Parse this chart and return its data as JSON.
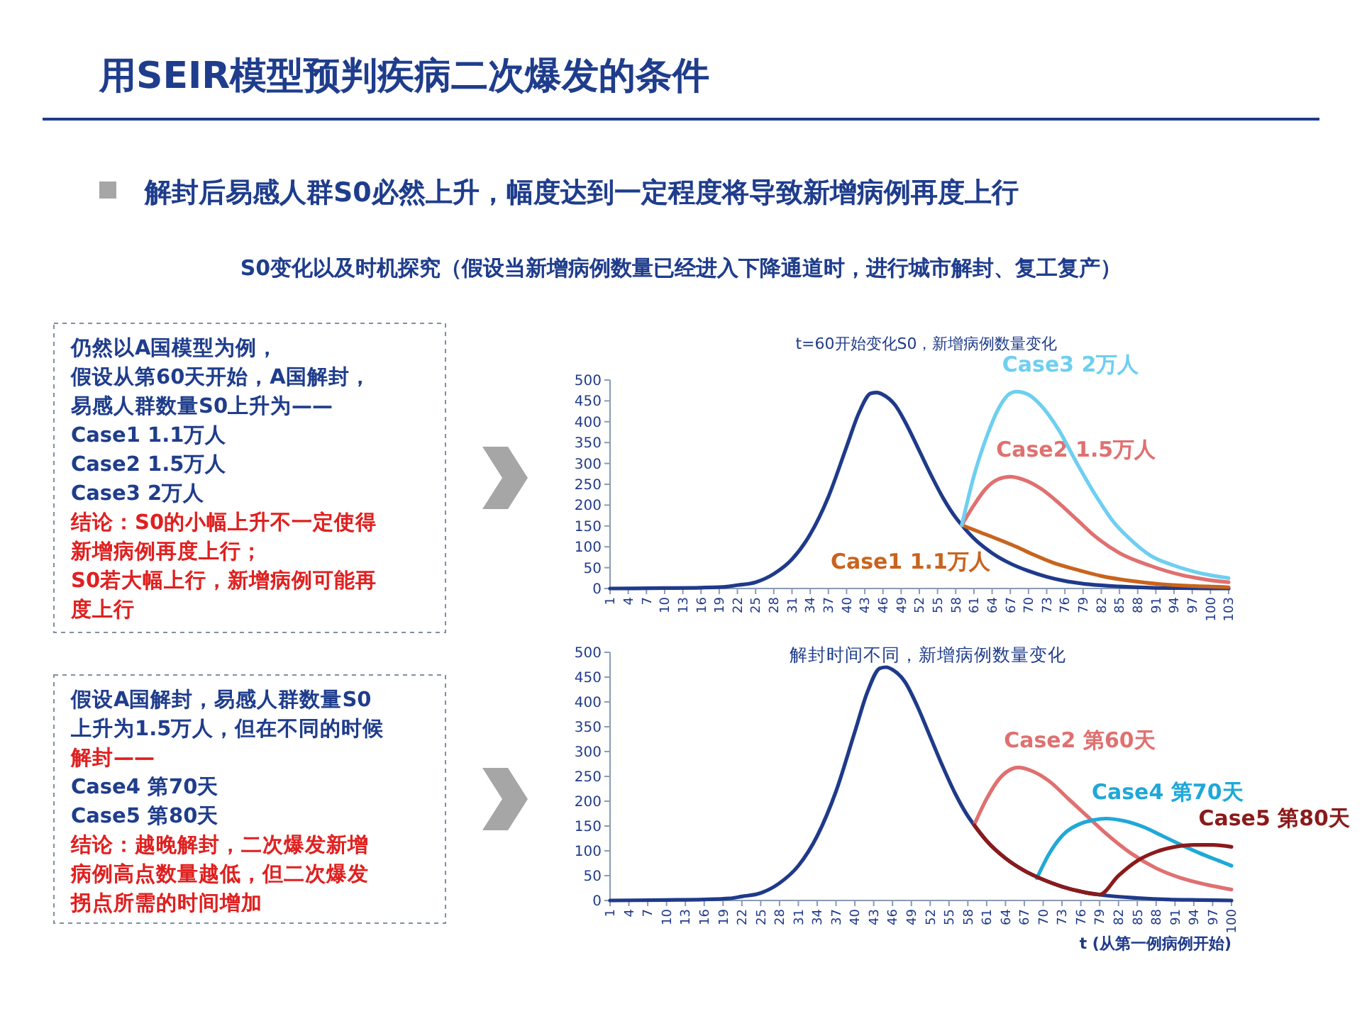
{
  "chart_data": [
    {
      "type": "other",
      "title": "用SEIR模型预判疾病二次爆发的条件",
      "subtitle": "解封后易感人群S0必然上升，幅度达到一定程度将导致新增病例再度上行",
      "annotations": [
        "S0变化以及时机探究（假设当新增病例数量已经进入下降通道时，进行城市解封、复工复产）"
      ]
    },
    {
      "type": "other",
      "annotations": [
        "仍然以A国模型为例，",
        "假设从第60天开始，A国解封，",
        "易感人群数量S0上升为——",
        "Case1  1.1万人",
        "Case2  1.5万人",
        "Case3  2万人",
        "结论：S0的小幅上升不一定使得",
        "新增病例再度上行；",
        "S0若大幅上行，新增病例可能再",
        "度上行"
      ],
      "colors": [
        "#1f3d8c",
        "#1f3d8c",
        "#1f3d8c",
        "#1f3d8c",
        "#1f3d8c",
        "#1f3d8c",
        "#e02020",
        "#e02020",
        "#e02020",
        "#e02020"
      ]
    },
    {
      "type": "line",
      "title": "t=60开始变化S0，新增病例数量变化",
      "xlim": [
        1,
        103
      ],
      "xticks": [
        1,
        4,
        7,
        10,
        13,
        16,
        19,
        22,
        25,
        28,
        31,
        34,
        37,
        40,
        43,
        46,
        49,
        52,
        55,
        58,
        61,
        64,
        67,
        70,
        73,
        76,
        79,
        82,
        85,
        88,
        91,
        94,
        97,
        100,
        103
      ],
      "ylim": [
        0,
        500
      ],
      "yticks": [
        0,
        50,
        100,
        150,
        200,
        250,
        300,
        350,
        400,
        450,
        500
      ],
      "grid": false,
      "legend": false,
      "marker": "none",
      "line_style": "solid",
      "series": [
        {
          "color": "#1f3a8a",
          "x": [
            1,
            10,
            16,
            20,
            22,
            25,
            28,
            31,
            34,
            37,
            40,
            42,
            44,
            45,
            46,
            48,
            50,
            52,
            54,
            56,
            58,
            59,
            61,
            64,
            67,
            70,
            73,
            76,
            80,
            85,
            90,
            95,
            103
          ],
          "values": [
            0,
            1,
            2,
            4,
            8,
            15,
            35,
            70,
            130,
            220,
            340,
            420,
            468,
            470,
            465,
            440,
            390,
            330,
            270,
            215,
            170,
            152,
            120,
            85,
            60,
            42,
            28,
            18,
            10,
            5,
            2,
            1,
            0
          ]
        },
        {
          "name": "Case1 1.1万人",
          "color": "#c8641e",
          "x": [
            59,
            62,
            65,
            68,
            71,
            74,
            78,
            82,
            87,
            92,
            97,
            103
          ],
          "values": [
            152,
            135,
            118,
            100,
            80,
            62,
            45,
            30,
            18,
            10,
            6,
            3
          ]
        },
        {
          "name": "Case2 1.5万人",
          "color": "#e07070",
          "x": [
            59,
            61,
            63,
            65,
            67,
            69,
            72,
            75,
            78,
            81,
            85,
            90,
            95,
            99,
            103
          ],
          "values": [
            152,
            200,
            240,
            262,
            268,
            262,
            240,
            205,
            165,
            125,
            85,
            55,
            33,
            22,
            15
          ]
        },
        {
          "name": "Case3  2万人",
          "color": "#6ecff0",
          "x": [
            59,
            61,
            63,
            65,
            67,
            68,
            70,
            72,
            75,
            78,
            81,
            84,
            87,
            90,
            94,
            98,
            103
          ],
          "values": [
            152,
            270,
            360,
            430,
            468,
            472,
            465,
            440,
            380,
            300,
            225,
            160,
            115,
            80,
            55,
            38,
            25
          ]
        }
      ]
    },
    {
      "type": "other",
      "annotations": [
        "假设A国解封，易感人群数量S0",
        "上升为1.5万人，但在不同的时候",
        "解封——",
        "Case4  第70天",
        "Case5  第80天",
        "结论：越晚解封，二次爆发新增",
        "病例高点数量越低，但二次爆发",
        "拐点所需的时间增加"
      ],
      "colors": [
        "#1f3d8c",
        "#1f3d8c",
        "#e02020",
        "#1f3d8c",
        "#1f3d8c",
        "#e02020",
        "#e02020",
        "#e02020"
      ]
    },
    {
      "type": "line",
      "title": "解封时间不同，新增病例数量变化",
      "xlabel": "t (从第一例病例开始)",
      "xlim": [
        1,
        100
      ],
      "xticks": [
        1,
        4,
        7,
        10,
        13,
        16,
        19,
        22,
        25,
        28,
        31,
        34,
        37,
        40,
        43,
        46,
        49,
        52,
        55,
        58,
        61,
        64,
        67,
        70,
        73,
        76,
        79,
        82,
        85,
        88,
        91,
        94,
        97,
        100
      ],
      "ylim": [
        0,
        500
      ],
      "yticks": [
        0,
        50,
        100,
        150,
        200,
        250,
        300,
        350,
        400,
        450,
        500
      ],
      "grid": false,
      "legend": false,
      "marker": "none",
      "line_style": "solid",
      "series": [
        {
          "color": "#1f3a8a",
          "x": [
            1,
            10,
            16,
            20,
            22,
            25,
            28,
            31,
            34,
            37,
            40,
            42,
            44,
            45,
            46,
            48,
            50,
            52,
            54,
            56,
            58,
            59,
            61,
            64,
            67,
            70,
            73,
            76,
            80,
            85,
            90,
            95,
            100
          ],
          "values": [
            0,
            1,
            2,
            4,
            8,
            15,
            35,
            70,
            130,
            220,
            340,
            420,
            468,
            470,
            465,
            440,
            390,
            330,
            270,
            215,
            170,
            152,
            120,
            85,
            60,
            42,
            28,
            18,
            10,
            5,
            2,
            1,
            0
          ]
        },
        {
          "name": "Case2 第60天",
          "color": "#e07070",
          "x": [
            59,
            61,
            63,
            65,
            66,
            68,
            71,
            74,
            77,
            80,
            84,
            88,
            92,
            96,
            100
          ],
          "values": [
            152,
            205,
            245,
            265,
            268,
            262,
            240,
            205,
            170,
            135,
            95,
            65,
            45,
            32,
            22
          ]
        },
        {
          "name": "Case4 第70天",
          "color": "#1fa8d8",
          "x": [
            69,
            71,
            73,
            76,
            78,
            80,
            83,
            86,
            89,
            92,
            95,
            98,
            100
          ],
          "values": [
            45,
            95,
            130,
            155,
            162,
            165,
            160,
            148,
            130,
            112,
            95,
            80,
            70
          ]
        },
        {
          "name": "Case5 第80天",
          "color": "#8b1a1a",
          "x": [
            59,
            61,
            64,
            67,
            70,
            73,
            76,
            79,
            82,
            85,
            88,
            91,
            94,
            97,
            100
          ],
          "values": [
            152,
            120,
            85,
            60,
            42,
            28,
            18,
            12,
            50,
            80,
            98,
            108,
            112,
            112,
            108
          ]
        }
      ]
    }
  ]
}
